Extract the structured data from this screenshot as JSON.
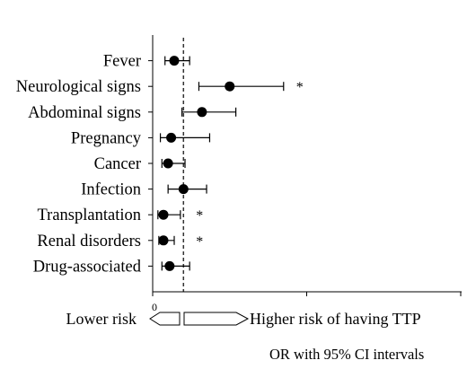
{
  "chart_data": {
    "type": "scatter",
    "categories": [
      "Fever",
      "Neurological signs",
      "Abdominal signs",
      "Pregnancy",
      "Cancer",
      "Infection",
      "Transplantation",
      "Renal disorders",
      "Drug-associated"
    ],
    "series": [
      {
        "values": [
          0.7,
          2.5,
          1.6,
          0.6,
          0.5,
          1.0,
          0.35,
          0.35,
          0.55
        ],
        "ci_low": [
          0.4,
          1.5,
          0.95,
          0.25,
          0.3,
          0.5,
          0.17,
          0.2,
          0.3
        ],
        "ci_high": [
          1.2,
          4.25,
          2.7,
          1.85,
          1.05,
          1.75,
          0.9,
          0.7,
          1.2
        ],
        "significant": [
          false,
          true,
          false,
          false,
          false,
          false,
          true,
          true,
          false
        ]
      }
    ],
    "significance_marker": "*",
    "reference_line": 1,
    "xlim": [
      0,
      10
    ],
    "xticks": [
      0,
      5,
      10
    ],
    "xtick_labels": [
      "0",
      "",
      ""
    ],
    "xlabel": "OR with 95% CI intervals",
    "lower_label": "Lower risk",
    "higher_label": "Higher risk of having TTP",
    "grid": false,
    "legend": "none",
    "colors": {
      "marker": "#000000",
      "line": "#000000",
      "reference_line": "#333333"
    }
  }
}
